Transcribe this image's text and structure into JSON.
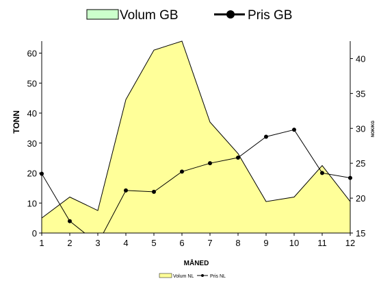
{
  "chart_data": {
    "type": "area",
    "categories": [
      1,
      2,
      3,
      4,
      5,
      6,
      7,
      8,
      9,
      10,
      11,
      12
    ],
    "series": [
      {
        "name": "Volum NL",
        "axis": "left",
        "kind": "area",
        "values": [
          5,
          12,
          7.5,
          44.5,
          61,
          64,
          37,
          26.5,
          10.5,
          12,
          22.5,
          10.5
        ],
        "color": "#ffff99"
      },
      {
        "name": "Pris NL",
        "axis": "right",
        "kind": "line",
        "values": [
          23.5,
          16.7,
          13.5,
          21.1,
          20.9,
          23.8,
          25.0,
          25.8,
          28.8,
          29.8,
          23.6,
          22.9
        ],
        "color": "#000000"
      }
    ],
    "xlabel": "MÅNED",
    "ylabel": "TONN",
    "y2label": "NOK/KG",
    "ylim": [
      0,
      64
    ],
    "y2lim": [
      15,
      42.5
    ],
    "yticks": [
      0,
      10,
      20,
      30,
      40,
      50,
      60
    ],
    "y2ticks": [
      15,
      20,
      25,
      30,
      35,
      40
    ],
    "grid": false,
    "legend_top": [
      {
        "label": "Volum GB",
        "kind": "area",
        "color": "#ccffcc"
      },
      {
        "label": "Pris GB",
        "kind": "line",
        "color": "#000000"
      }
    ],
    "legend_placement": "top and bottom-center"
  }
}
